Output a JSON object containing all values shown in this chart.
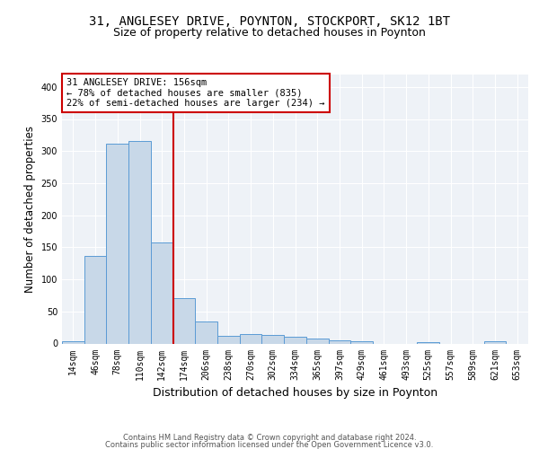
{
  "title1": "31, ANGLESEY DRIVE, POYNTON, STOCKPORT, SK12 1BT",
  "title2": "Size of property relative to detached houses in Poynton",
  "xlabel": "Distribution of detached houses by size in Poynton",
  "ylabel": "Number of detached properties",
  "bin_labels": [
    "14sqm",
    "46sqm",
    "78sqm",
    "110sqm",
    "142sqm",
    "174sqm",
    "206sqm",
    "238sqm",
    "270sqm",
    "302sqm",
    "334sqm",
    "365sqm",
    "397sqm",
    "429sqm",
    "461sqm",
    "493sqm",
    "525sqm",
    "557sqm",
    "589sqm",
    "621sqm",
    "653sqm"
  ],
  "bar_values": [
    3,
    136,
    312,
    316,
    158,
    71,
    34,
    12,
    15,
    14,
    11,
    8,
    5,
    3,
    0,
    0,
    2,
    0,
    0,
    3,
    0
  ],
  "bar_color": "#c8d8e8",
  "bar_edge_color": "#5b9bd5",
  "vline_x_index": 4.5,
  "vline_color": "#cc0000",
  "annotation_text": "31 ANGLESEY DRIVE: 156sqm\n← 78% of detached houses are smaller (835)\n22% of semi-detached houses are larger (234) →",
  "annotation_box_color": "white",
  "annotation_box_edge": "#cc0000",
  "ylim": [
    0,
    420
  ],
  "yticks": [
    0,
    50,
    100,
    150,
    200,
    250,
    300,
    350,
    400
  ],
  "background_color": "#eef2f7",
  "footer_line1": "Contains HM Land Registry data © Crown copyright and database right 2024.",
  "footer_line2": "Contains public sector information licensed under the Open Government Licence v3.0.",
  "title1_fontsize": 10,
  "title2_fontsize": 9,
  "xlabel_fontsize": 9,
  "ylabel_fontsize": 8.5,
  "tick_fontsize": 7,
  "footer_fontsize": 6,
  "ann_fontsize": 7.5
}
